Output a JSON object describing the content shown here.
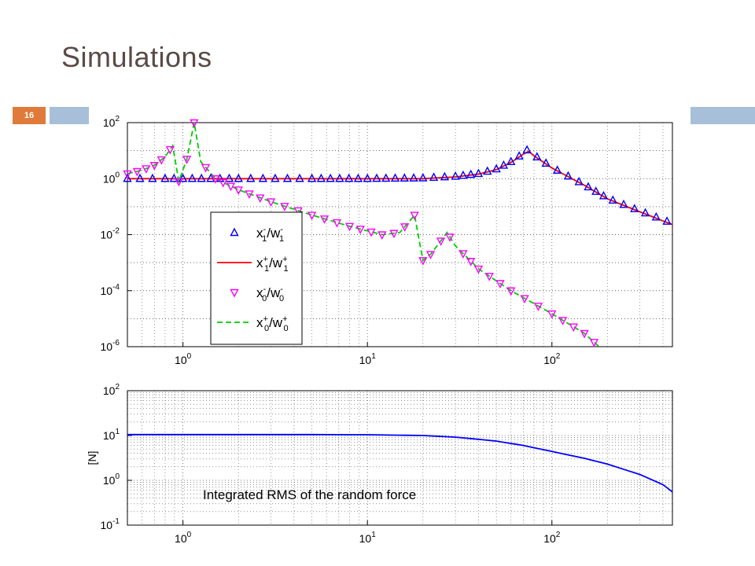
{
  "slide": {
    "title": "Simulations",
    "page_number": "16",
    "accent_color": "#e07a3a",
    "bar_color": "#a7bfd8"
  },
  "chart_data": [
    {
      "type": "line",
      "x_scale": "log",
      "y_scale": "log",
      "xlim": [
        0.5,
        450
      ],
      "ylim": [
        1e-06,
        100
      ],
      "x_ticks": [
        {
          "value": 1,
          "base": "10",
          "exp": "0"
        },
        {
          "value": 10,
          "base": "10",
          "exp": "1"
        },
        {
          "value": 100,
          "base": "10",
          "exp": "2"
        }
      ],
      "y_ticks": [
        {
          "value": 100,
          "base": "10",
          "exp": "2"
        },
        {
          "value": 1,
          "base": "10",
          "exp": "0"
        },
        {
          "value": 0.01,
          "base": "10",
          "exp": "-2"
        },
        {
          "value": 0.0001,
          "base": "10",
          "exp": "-4"
        },
        {
          "value": 1e-06,
          "base": "10",
          "exp": "-6"
        }
      ],
      "grid": true,
      "legend_position": "lower-left",
      "series": [
        {
          "name": "x1-/w1-",
          "legend": {
            "main": "x",
            "sub": "1",
            "sup": "-",
            "div": "/w",
            "sub2": "1",
            "sup2": "-"
          },
          "color": "#0000ff",
          "marker": "triangle-up",
          "line": "none",
          "x": [
            0.5,
            0.8,
            1,
            2,
            5,
            10,
            20,
            30,
            40,
            50,
            60,
            70,
            75,
            80,
            100,
            150,
            200,
            300,
            450
          ],
          "y": [
            1,
            1,
            1,
            1,
            1,
            1,
            1.05,
            1.2,
            1.5,
            2.2,
            4,
            8,
            12,
            7,
            2.5,
            0.6,
            0.2,
            0.07,
            0.025
          ]
        },
        {
          "name": "x1+/w1+",
          "legend": {
            "main": "x",
            "sub": "1",
            "sup": "+",
            "div": "/w",
            "sub2": "1",
            "sup2": "+"
          },
          "color": "#ff0000",
          "marker": "none",
          "line": "solid",
          "x": [
            0.5,
            1,
            2,
            5,
            10,
            20,
            30,
            40,
            50,
            60,
            70,
            75,
            80,
            100,
            150,
            200,
            300,
            450
          ],
          "y": [
            1,
            1,
            1,
            1,
            1,
            1,
            1.15,
            1.45,
            2.1,
            3.8,
            7.5,
            9.5,
            6.5,
            2.4,
            0.58,
            0.19,
            0.065,
            0.023
          ]
        },
        {
          "name": "x0-/w0-",
          "legend": {
            "main": "x",
            "sub": "0",
            "sup": "-",
            "div": "/w",
            "sub2": "0",
            "sup2": "-"
          },
          "color": "#ff00ff",
          "marker": "triangle-down",
          "line": "none",
          "x": [
            0.5,
            0.6,
            0.7,
            0.8,
            0.88,
            0.95,
            1.05,
            1.15,
            1.25,
            1.5,
            2,
            3,
            5,
            8,
            12,
            15,
            18,
            20,
            22,
            25,
            27,
            30,
            40,
            60,
            100,
            150,
            180
          ],
          "y": [
            1.5,
            2,
            3,
            6,
            15,
            0.8,
            5,
            100,
            4,
            1,
            0.4,
            0.15,
            0.05,
            0.02,
            0.01,
            0.012,
            0.05,
            0.0012,
            0.002,
            0.006,
            0.012,
            0.004,
            0.0006,
            0.0001,
            1.5e-05,
            3e-06,
            1e-06
          ]
        },
        {
          "name": "x0+/w0+",
          "legend": {
            "main": "x",
            "sub": "0",
            "sup": "+",
            "div": "/w",
            "sub2": "0",
            "sup2": "+"
          },
          "color": "#00cc00",
          "marker": "none",
          "line": "dashed",
          "x": [
            0.5,
            0.6,
            0.7,
            0.8,
            0.88,
            0.95,
            1.05,
            1.15,
            1.25,
            1.5,
            2,
            3,
            5,
            8,
            12,
            15,
            18,
            20,
            22,
            25,
            27,
            30,
            40,
            60,
            100,
            150,
            180
          ],
          "y": [
            1.5,
            2,
            3,
            6,
            15,
            0.8,
            5,
            100,
            4,
            1,
            0.4,
            0.15,
            0.05,
            0.02,
            0.01,
            0.012,
            0.05,
            0.0012,
            0.002,
            0.006,
            0.012,
            0.004,
            0.0006,
            0.0001,
            1.5e-05,
            3e-06,
            1e-06
          ]
        }
      ]
    },
    {
      "type": "line",
      "x_scale": "log",
      "y_scale": "log",
      "xlim": [
        0.5,
        450
      ],
      "ylim": [
        0.1,
        100
      ],
      "ylabel": "[N]",
      "annotation": "Integrated RMS of the random force",
      "x_ticks": [
        {
          "value": 1,
          "base": "10",
          "exp": "0"
        },
        {
          "value": 10,
          "base": "10",
          "exp": "1"
        },
        {
          "value": 100,
          "base": "10",
          "exp": "2"
        }
      ],
      "y_ticks": [
        {
          "value": 100,
          "base": "10",
          "exp": "2"
        },
        {
          "value": 10,
          "base": "10",
          "exp": "1"
        },
        {
          "value": 1,
          "base": "10",
          "exp": "0"
        },
        {
          "value": 0.1,
          "base": "10",
          "exp": "-1"
        }
      ],
      "grid": true,
      "series": [
        {
          "color": "#0000ff",
          "line": "solid",
          "x": [
            0.5,
            1,
            2,
            5,
            10,
            20,
            30,
            50,
            70,
            100,
            150,
            200,
            300,
            400,
            450
          ],
          "y": [
            10.5,
            10.5,
            10.5,
            10.5,
            10.4,
            10,
            9.2,
            7.5,
            6,
            4.4,
            3.1,
            2.3,
            1.35,
            0.8,
            0.55
          ]
        }
      ]
    }
  ]
}
